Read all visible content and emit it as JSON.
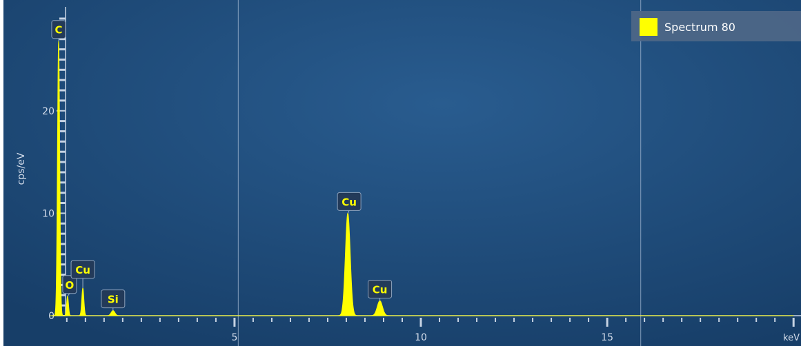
{
  "chart_data": {
    "type": "line",
    "title": "",
    "xlabel": "keV",
    "ylabel": "cps/eV",
    "xlim": [
      -1.2,
      20.2
    ],
    "ylim": [
      0,
      29
    ],
    "grid": false,
    "legend_position": "top-right",
    "x_ticks": [
      5,
      10,
      15
    ],
    "y_ticks": [
      0,
      10,
      20
    ],
    "series": [
      {
        "name": "Spectrum 80",
        "color": "#ffff00",
        "peaks": [
          {
            "x": 0.28,
            "y": 26.8
          },
          {
            "x": 0.52,
            "y": 1.9
          },
          {
            "x": 0.93,
            "y": 2.7
          },
          {
            "x": 1.74,
            "y": 0.5
          },
          {
            "x": 8.04,
            "y": 10.0
          },
          {
            "x": 8.9,
            "y": 1.45
          }
        ]
      }
    ],
    "peak_labels": [
      {
        "text": "C",
        "x": 0.28,
        "y": 26.8
      },
      {
        "text": "O",
        "x": 0.52,
        "y": 1.9
      },
      {
        "text": "Cu",
        "x": 0.93,
        "y": 2.7
      },
      {
        "text": "Si",
        "x": 1.74,
        "y": 0.5
      },
      {
        "text": "Cu",
        "x": 8.04,
        "y": 10.0
      },
      {
        "text": "Cu",
        "x": 8.9,
        "y": 1.45
      }
    ],
    "marker_lines_x": [
      5.1,
      15.9
    ],
    "colors": {
      "background": "#1f4d7c",
      "trace": "#ffff00",
      "axis": "#c7d3e3",
      "text": "#d3dcea",
      "label_box": "#233a59",
      "legend_box": "#4d6687"
    }
  }
}
